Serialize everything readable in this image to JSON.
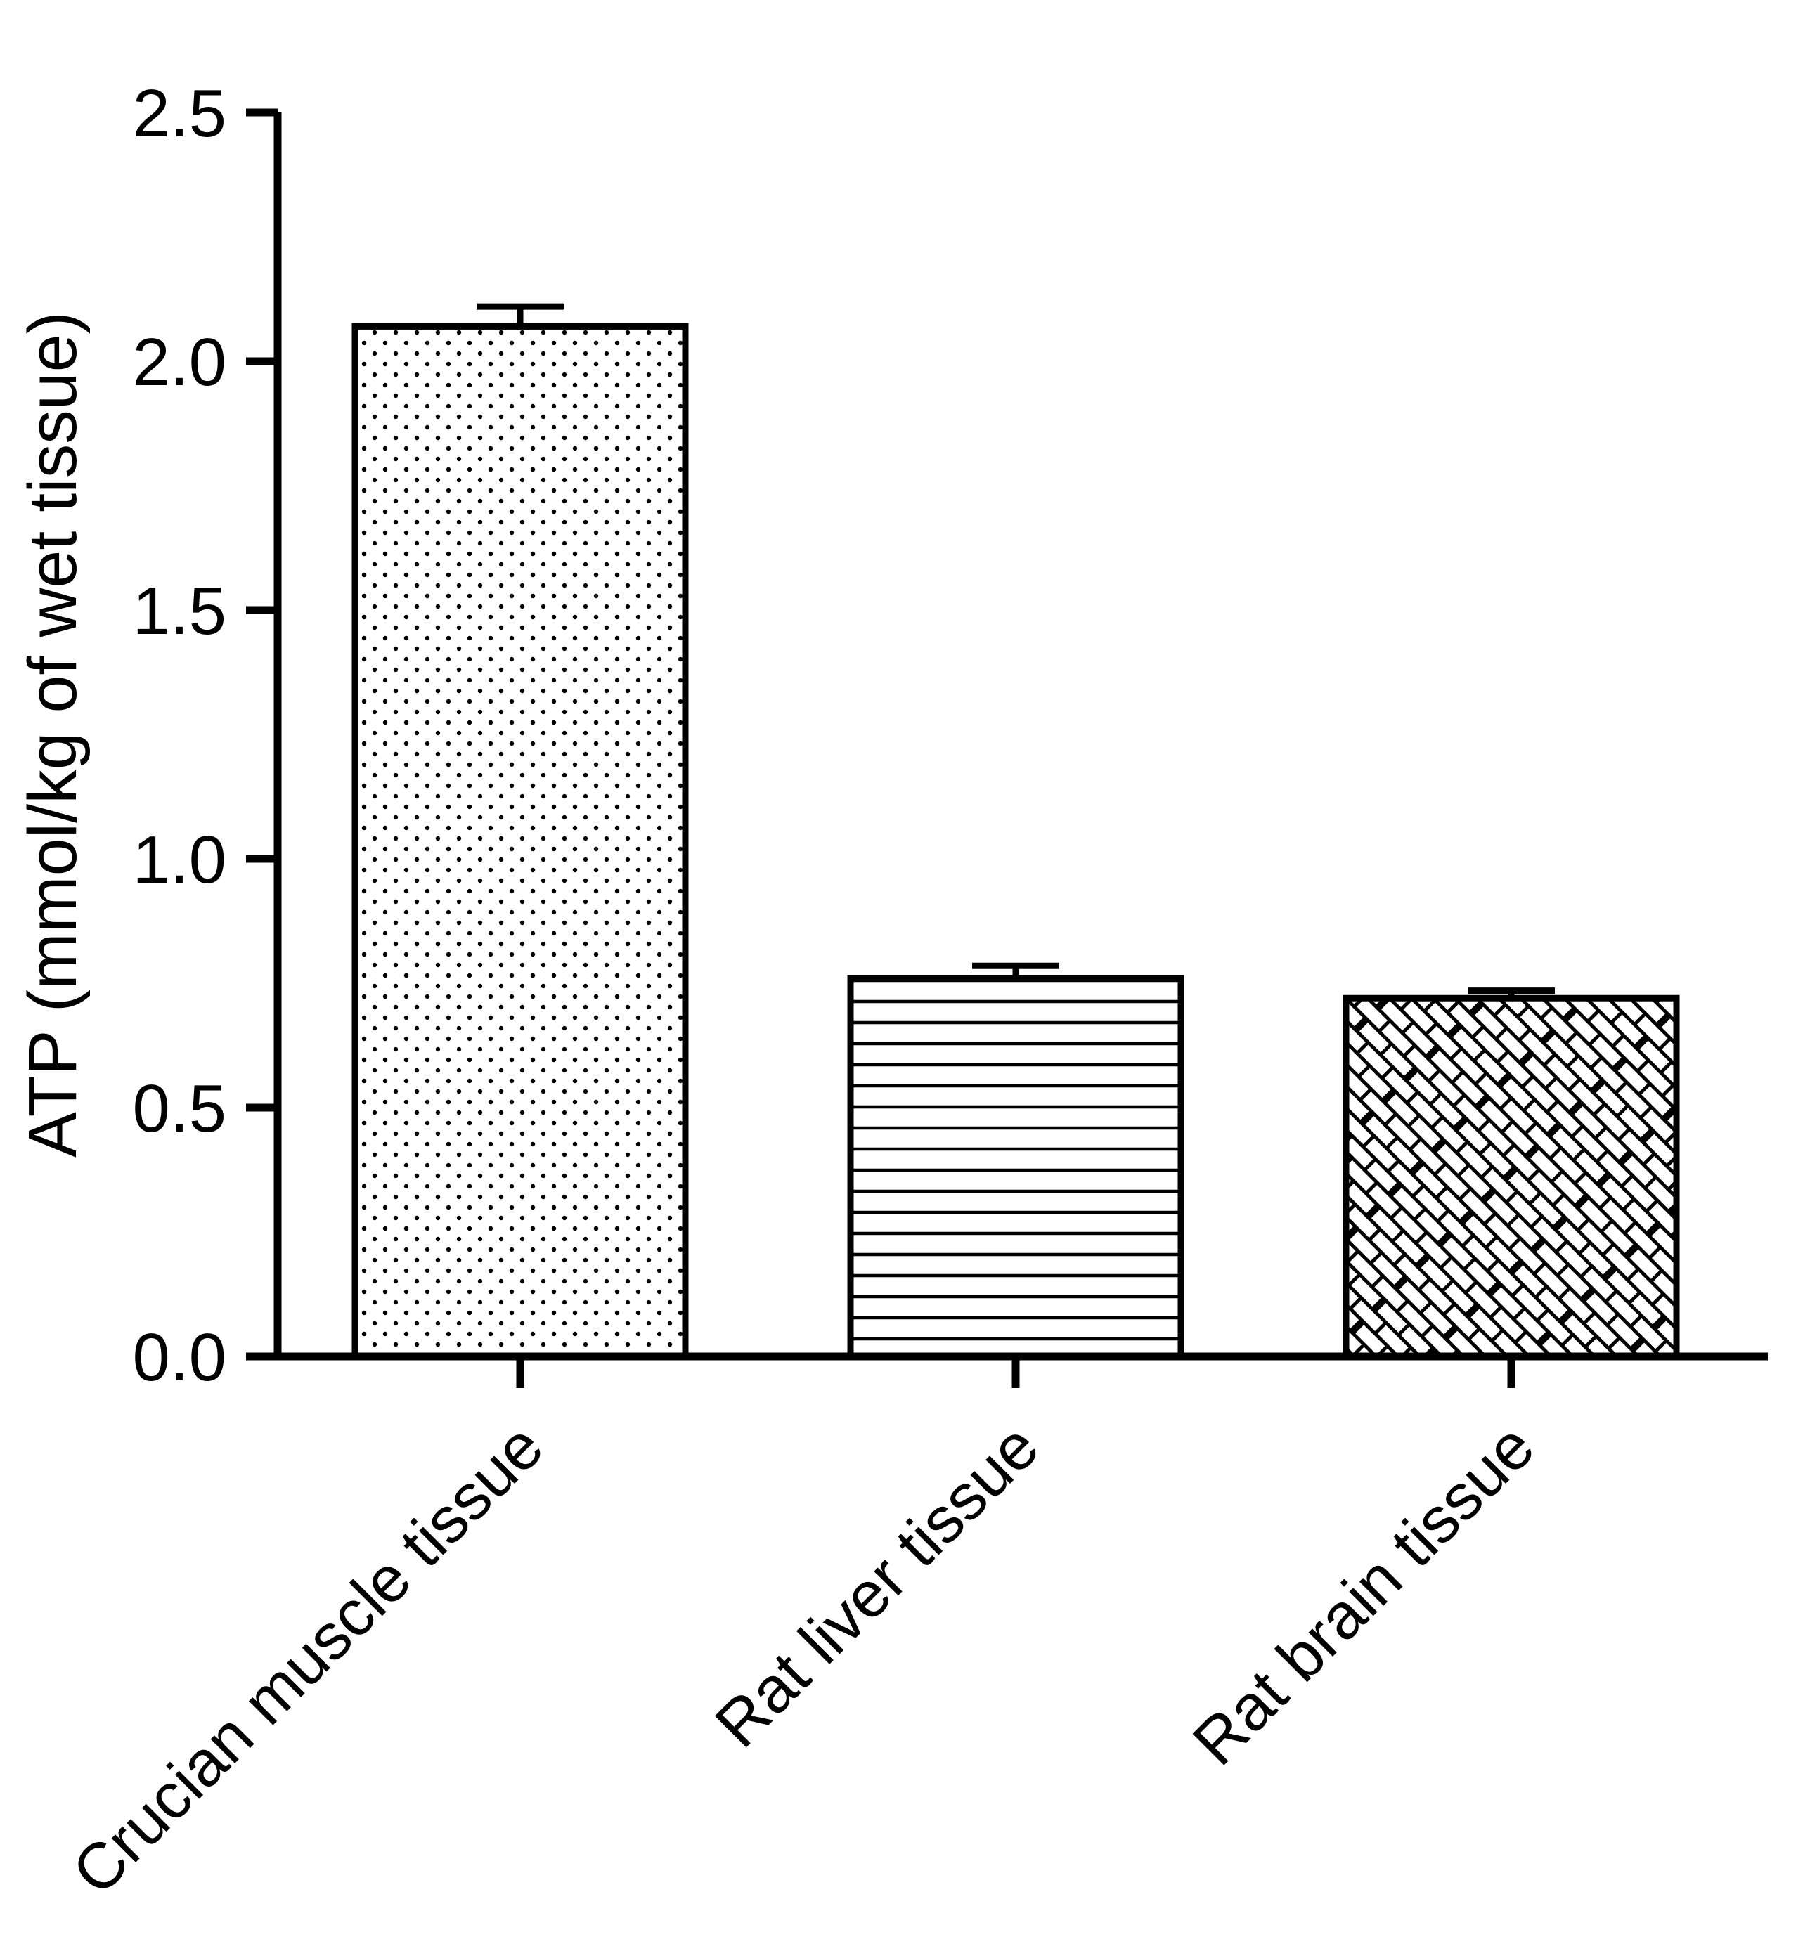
{
  "chart_data": {
    "type": "bar",
    "title": "",
    "ylabel": "ATP (mmol/kg of wet tissue)",
    "xlabel": "",
    "categories": [
      "Crucian muscle tissue",
      "Rat liver tissue",
      "Rat brain tissue"
    ],
    "values": [
      2.07,
      0.76,
      0.72
    ],
    "errors": [
      0.04,
      0.025,
      0.015
    ],
    "error_style": "upper-cap-only",
    "ylim": [
      0.0,
      2.5
    ],
    "yticks": [
      0.0,
      0.5,
      1.0,
      1.5,
      2.0,
      2.5
    ],
    "ytick_labels": [
      "0.0",
      "0.5",
      "1.0",
      "1.5",
      "2.0",
      "2.5"
    ],
    "bar_patterns": [
      "dots",
      "horizontal-lines",
      "diagonal-bricks"
    ],
    "bar_fill": "#ffffff",
    "stroke_color": "#000000",
    "grid": false,
    "legend": "none",
    "x_label_rotation_deg": -45
  }
}
